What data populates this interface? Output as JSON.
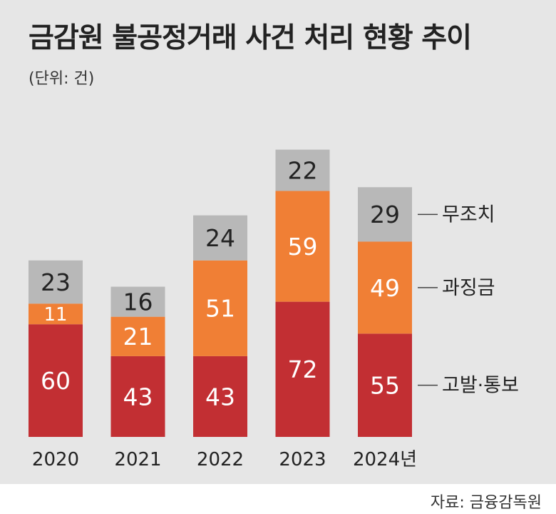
{
  "title": "금감원 불공정거래 사건 처리 현황 추이",
  "unit": "(단위: 건)",
  "source": "자료: 금융감독원",
  "colors": {
    "background": "#e6e6e6",
    "고발·통보": "#c22f33",
    "과징금": "#f07f35",
    "무조치": "#b8b8b8"
  },
  "chart_data": {
    "type": "bar",
    "stacked": true,
    "categories": [
      "2020",
      "2021",
      "2022",
      "2023",
      "2024년"
    ],
    "series": [
      {
        "name": "고발·통보",
        "values": [
          60,
          43,
          43,
          72,
          55
        ],
        "color": "#c22f33"
      },
      {
        "name": "과징금",
        "values": [
          11,
          21,
          51,
          59,
          49
        ],
        "color": "#f07f35"
      },
      {
        "name": "무조치",
        "values": [
          23,
          16,
          24,
          22,
          29
        ],
        "color": "#b8b8b8"
      }
    ],
    "grid": false,
    "legend_placement": "right of last bar"
  }
}
